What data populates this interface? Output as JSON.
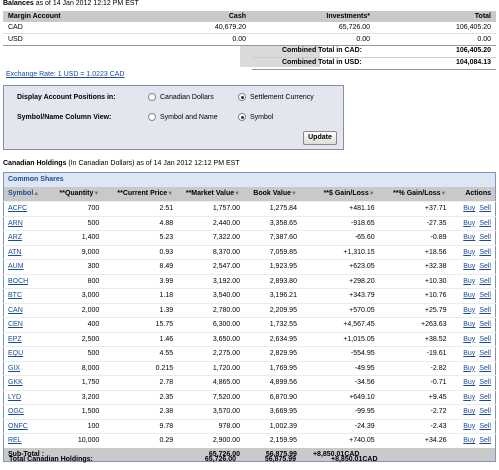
{
  "balances": {
    "heading": "Balances",
    "asof": "as of 14 Jan 2012 12:12 PM EST",
    "columns": [
      "Margin Account",
      "Cash",
      "Investments*",
      "Total"
    ],
    "rows": [
      {
        "account": "CAD",
        "cash": "40,679.20",
        "investments": "65,726.00",
        "total": "106,405.20"
      },
      {
        "account": "USD",
        "cash": "0.00",
        "investments": "0.00",
        "total": "0.00"
      }
    ],
    "combined_cad_label": "Combined Total in CAD:",
    "combined_cad_value": "106,405.20",
    "combined_usd_label": "Combined Total in USD:",
    "combined_usd_value": "104,084.13",
    "exchange_rate": "Exchange Rate: 1 USD = 1.0223 CAD"
  },
  "options": {
    "display_label": "Display Account Positions in:",
    "display_opt1": "Canadian Dollars",
    "display_opt2": "Settlement Currency",
    "symbol_label": "Symbol/Name Column View:",
    "symbol_opt1": "Symbol and Name",
    "symbol_opt2": "Symbol",
    "update_button": "Update"
  },
  "holdings": {
    "heading": "Canadian Holdings",
    "subheading": "(In Canadian Dollars)",
    "asof": "as of 14 Jan 2012 12:12 PM EST",
    "section": "Common Shares",
    "columns": {
      "symbol": "Symbol",
      "quantity": "**Quantity",
      "price": "**Current Price",
      "market": "**Market Value",
      "book": "Book Value",
      "gain_d": "**$ Gain/Loss",
      "gain_p": "**% Gain/Loss",
      "actions": "Actions"
    },
    "buy_label": "Buy",
    "sell_label": "Sell",
    "rows": [
      {
        "symbol": "ACFC",
        "qty": "700",
        "price": "2.51",
        "market": "1,757.00",
        "book": "1,275.84",
        "gain": "+481.16",
        "pct": "+37.71"
      },
      {
        "symbol": "ARN",
        "qty": "500",
        "price": "4.88",
        "market": "2,440.00",
        "book": "3,358.65",
        "gain": "-918.65",
        "pct": "-27.35"
      },
      {
        "symbol": "ARZ",
        "qty": "1,400",
        "price": "5.23",
        "market": "7,322.00",
        "book": "7,387.60",
        "gain": "-65.60",
        "pct": "-0.89"
      },
      {
        "symbol": "ATN",
        "qty": "9,000",
        "price": "0.93",
        "market": "8,370.00",
        "book": "7,059.85",
        "gain": "+1,310.15",
        "pct": "+18.56"
      },
      {
        "symbol": "AUM",
        "qty": "300",
        "price": "8.49",
        "market": "2,547.00",
        "book": "1,923.95",
        "gain": "+623.05",
        "pct": "+32.38"
      },
      {
        "symbol": "BOCH",
        "qty": "800",
        "price": "3.99",
        "market": "3,192.00",
        "book": "2,893.80",
        "gain": "+298.20",
        "pct": "+10.30"
      },
      {
        "symbol": "BTC",
        "qty": "3,000",
        "price": "1.18",
        "market": "3,540.00",
        "book": "3,196.21",
        "gain": "+343.79",
        "pct": "+10.76"
      },
      {
        "symbol": "CAN",
        "qty": "2,000",
        "price": "1.39",
        "market": "2,780.00",
        "book": "2,209.95",
        "gain": "+570.05",
        "pct": "+25.79"
      },
      {
        "symbol": "CEN",
        "qty": "400",
        "price": "15.75",
        "market": "6,300.00",
        "book": "1,732.55",
        "gain": "+4,567.45",
        "pct": "+263.63"
      },
      {
        "symbol": "EPZ",
        "qty": "2,500",
        "price": "1.46",
        "market": "3,650.00",
        "book": "2,634.95",
        "gain": "+1,015.05",
        "pct": "+38.52"
      },
      {
        "symbol": "EQU",
        "qty": "500",
        "price": "4.55",
        "market": "2,275.00",
        "book": "2,829.95",
        "gain": "-554.95",
        "pct": "-19.61"
      },
      {
        "symbol": "GIX",
        "qty": "8,000",
        "price": "0.215",
        "market": "1,720.00",
        "book": "1,769.95",
        "gain": "-49.95",
        "pct": "-2.82"
      },
      {
        "symbol": "GKK",
        "qty": "1,750",
        "price": "2.78",
        "market": "4,865.00",
        "book": "4,899.56",
        "gain": "-34.56",
        "pct": "-0.71"
      },
      {
        "symbol": "LYD",
        "qty": "3,200",
        "price": "2.35",
        "market": "7,520.00",
        "book": "6,870.90",
        "gain": "+649.10",
        "pct": "+9.45"
      },
      {
        "symbol": "OGC",
        "qty": "1,500",
        "price": "2.38",
        "market": "3,570.00",
        "book": "3,669.95",
        "gain": "-99.95",
        "pct": "-2.72"
      },
      {
        "symbol": "ONFC",
        "qty": "100",
        "price": "9.78",
        "market": "978.00",
        "book": "1,002.39",
        "gain": "-24.39",
        "pct": "-2.43"
      },
      {
        "symbol": "REL",
        "qty": "10,000",
        "price": "0.29",
        "market": "2,900.00",
        "book": "2,159.95",
        "gain": "+740.05",
        "pct": "+34.26"
      }
    ],
    "subtotal_label": "Sub-Total :",
    "subtotal_market": "65,726.00",
    "subtotal_book": "56,875.99",
    "subtotal_gain": "+8,850.01",
    "subtotal_currency": "CAD",
    "total_label": "Total Canadian Holdings:",
    "total_market": "65,726.00",
    "total_book": "56,875.99",
    "total_gain": "+8,850.01",
    "total_currency": "CAD"
  }
}
